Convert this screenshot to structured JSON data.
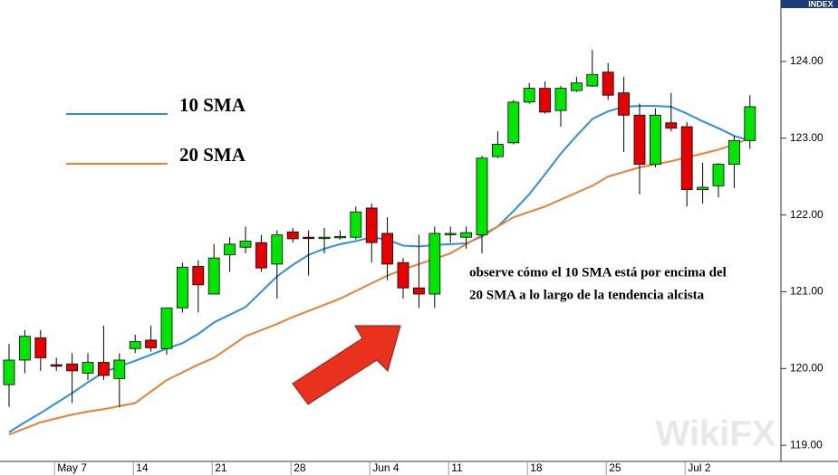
{
  "chart_data": {
    "type": "candlestick",
    "axis_label": "INDEX",
    "watermark": "WikiFX",
    "annotation": [
      "observe cómo el 10 SMA está por encima del",
      "20 SMA a lo largo de la tendencia alcista"
    ],
    "categories": [
      null,
      null,
      null,
      "May 7",
      null,
      null,
      null,
      null,
      "14",
      null,
      null,
      null,
      null,
      "21",
      null,
      null,
      null,
      null,
      "28",
      null,
      null,
      null,
      null,
      "Jun 4",
      null,
      null,
      null,
      null,
      "11",
      null,
      null,
      null,
      null,
      "18",
      null,
      null,
      null,
      null,
      "25",
      null,
      null,
      null,
      null,
      "Jul 2",
      null,
      null,
      null,
      null
    ],
    "up_color": "#00e600",
    "down_color": "#e60000",
    "open": [
      119.79,
      120.11,
      120.4,
      120.05,
      120.06,
      119.94,
      120.08,
      119.87,
      120.26,
      120.37,
      120.26,
      120.79,
      121.33,
      120.97,
      121.48,
      121.58,
      121.64,
      121.36,
      121.78,
      121.71,
      121.7,
      121.71,
      121.71,
      122.09,
      121.76,
      121.38,
      121.05,
      120.97,
      121.75,
      121.71,
      121.74,
      122.76,
      122.94,
      123.47,
      123.65,
      123.36,
      123.62,
      123.68,
      123.86,
      123.59,
      123.3,
      122.66,
      123.2,
      123.15,
      122.33,
      122.38,
      122.66,
      122.97
    ],
    "high": [
      120.32,
      120.5,
      120.5,
      120.14,
      120.2,
      120.2,
      120.56,
      120.2,
      120.44,
      120.56,
      120.79,
      121.38,
      121.41,
      121.62,
      121.71,
      121.85,
      121.74,
      121.8,
      121.83,
      121.8,
      121.83,
      121.8,
      122.11,
      122.15,
      121.97,
      121.44,
      121.74,
      121.85,
      121.85,
      121.85,
      122.77,
      123.09,
      123.5,
      123.72,
      123.74,
      123.68,
      123.8,
      124.15,
      123.98,
      123.8,
      123.45,
      123.39,
      123.59,
      123.21,
      122.68,
      122.68,
      123.03,
      123.56
    ],
    "low": [
      119.5,
      119.94,
      119.97,
      119.97,
      119.55,
      119.85,
      119.85,
      119.5,
      120.2,
      120.22,
      120.18,
      120.73,
      120.73,
      120.97,
      121.26,
      121.5,
      121.26,
      120.91,
      121.64,
      121.21,
      121.5,
      121.68,
      121.68,
      121.38,
      121.15,
      120.91,
      120.79,
      120.79,
      121.64,
      121.56,
      121.5,
      122.74,
      122.92,
      123.45,
      123.32,
      123.15,
      123.6,
      123.67,
      123.5,
      122.82,
      122.27,
      122.62,
      123.09,
      122.11,
      122.15,
      122.23,
      122.35,
      122.86
    ],
    "close": [
      120.11,
      120.42,
      120.14,
      120.03,
      119.97,
      120.08,
      119.91,
      120.11,
      120.35,
      120.27,
      120.79,
      121.32,
      121.09,
      121.44,
      121.62,
      121.66,
      121.31,
      121.74,
      121.69,
      121.7,
      121.71,
      121.72,
      122.04,
      121.64,
      121.36,
      121.05,
      120.97,
      121.76,
      121.76,
      121.77,
      122.74,
      122.92,
      123.47,
      123.65,
      123.34,
      123.65,
      123.72,
      123.83,
      123.56,
      123.3,
      122.66,
      123.3,
      123.13,
      122.33,
      122.36,
      122.66,
      122.97,
      123.41
    ],
    "series": [
      {
        "name": "10 SMA",
        "color": "#2b8fe0",
        "values": [
          119.17,
          119.3,
          119.42,
          119.55,
          119.68,
          119.82,
          119.95,
          120.03,
          120.1,
          120.18,
          120.26,
          120.33,
          120.45,
          120.6,
          120.7,
          120.8,
          121.0,
          121.2,
          121.35,
          121.48,
          121.56,
          121.62,
          121.66,
          121.71,
          121.68,
          121.6,
          121.59,
          121.61,
          121.62,
          121.63,
          121.72,
          121.85,
          122.05,
          122.27,
          122.53,
          122.8,
          123.03,
          123.25,
          123.35,
          123.41,
          123.42,
          123.42,
          123.41,
          123.32,
          123.22,
          123.13,
          123.03,
          122.97
        ]
      },
      {
        "name": "20 SMA",
        "color": "#f07d32",
        "values": [
          119.14,
          119.22,
          119.3,
          119.35,
          119.4,
          119.44,
          119.47,
          119.51,
          119.55,
          119.7,
          119.85,
          119.95,
          120.05,
          120.14,
          120.28,
          120.42,
          120.5,
          120.58,
          120.67,
          120.75,
          120.83,
          120.91,
          121.01,
          121.11,
          121.21,
          121.29,
          121.36,
          121.43,
          121.5,
          121.62,
          121.74,
          121.85,
          121.97,
          122.04,
          122.11,
          122.2,
          122.29,
          122.38,
          122.5,
          122.56,
          122.62,
          122.66,
          122.7,
          122.75,
          122.8,
          122.85,
          122.92,
          123.0
        ]
      }
    ],
    "ylim": [
      118.79,
      124.8
    ],
    "yticks": [
      {
        "value": 119,
        "label": "119.00"
      },
      {
        "value": 120,
        "label": "120.00"
      },
      {
        "value": 121,
        "label": "121.00"
      },
      {
        "value": 122,
        "label": "122.00"
      },
      {
        "value": 123,
        "label": "123.00"
      },
      {
        "value": 124,
        "label": "124.00"
      }
    ]
  }
}
